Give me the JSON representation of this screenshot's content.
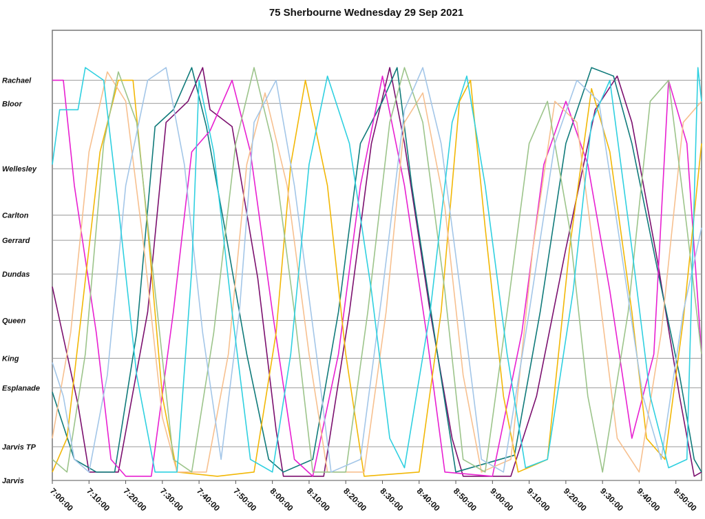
{
  "chart_data": {
    "type": "line",
    "title": "75 Sherbourne Wednesday 29 Sep 2021",
    "xlabel": "",
    "ylabel": "",
    "x_range": [
      "7:00:00",
      "9:57:00"
    ],
    "grid": true,
    "stops": [
      {
        "name": "Rachael",
        "pos": 0.95
      },
      {
        "name": "Bloor",
        "pos": 0.895
      },
      {
        "name": "Wellesley",
        "pos": 0.74
      },
      {
        "name": "Carlton",
        "pos": 0.63
      },
      {
        "name": "Gerrard",
        "pos": 0.57
      },
      {
        "name": "Dundas",
        "pos": 0.49
      },
      {
        "name": "Queen",
        "pos": 0.38
      },
      {
        "name": "King",
        "pos": 0.29
      },
      {
        "name": "Esplanade",
        "pos": 0.22
      },
      {
        "name": "Jarvis TP",
        "pos": 0.08
      },
      {
        "name": "Jarvis",
        "pos": 0.0
      }
    ],
    "x_ticks": [
      "7:00:00",
      "7:10:00",
      "7:20:00",
      "7:30:00",
      "7:40:00",
      "7:50:00",
      "8:00:00",
      "8:10:00",
      "8:20:00",
      "8:30:00",
      "8:40:00",
      "8:50:00",
      "9:00:00",
      "9:10:00",
      "9:20:00",
      "9:30:00",
      "9:40:00",
      "9:50:00"
    ],
    "series": [
      {
        "color": "#7b0f6e",
        "points": [
          [
            "7:00:00",
            0.46
          ],
          [
            "7:07:00",
            0.18
          ],
          [
            "7:10:00",
            0.02
          ],
          [
            "7:18:00",
            0.02
          ],
          [
            "7:26:00",
            0.4
          ],
          [
            "7:31:00",
            0.85
          ],
          [
            "7:37:00",
            0.9
          ],
          [
            "7:41:00",
            0.98
          ],
          [
            "7:43:00",
            0.88
          ],
          [
            "7:49:00",
            0.84
          ],
          [
            "7:56:00",
            0.48
          ],
          [
            "8:01:00",
            0.12
          ],
          [
            "8:03:00",
            0.01
          ],
          [
            "8:14:00",
            0.01
          ],
          [
            "8:21:00",
            0.4
          ],
          [
            "8:27:00",
            0.8
          ],
          [
            "8:32:00",
            0.98
          ],
          [
            "8:36:00",
            0.8
          ],
          [
            "8:43:00",
            0.4
          ],
          [
            "8:49:00",
            0.1
          ],
          [
            "8:52:00",
            0.01
          ],
          [
            "9:05:00",
            0.01
          ],
          [
            "9:12:00",
            0.2
          ],
          [
            "9:20:00",
            0.55
          ],
          [
            "9:28:00",
            0.88
          ],
          [
            "9:34:00",
            0.96
          ],
          [
            "9:38:00",
            0.85
          ],
          [
            "9:45:00",
            0.52
          ],
          [
            "9:51:00",
            0.2
          ],
          [
            "9:55:00",
            0.01
          ],
          [
            "9:57:00",
            0.02
          ]
        ]
      },
      {
        "color": "#0f7a7a",
        "points": [
          [
            "7:00:00",
            0.21
          ],
          [
            "7:06:00",
            0.05
          ],
          [
            "7:12:00",
            0.02
          ],
          [
            "7:17:00",
            0.02
          ],
          [
            "7:23:00",
            0.35
          ],
          [
            "7:28:00",
            0.84
          ],
          [
            "7:33:00",
            0.88
          ],
          [
            "7:38:00",
            0.98
          ],
          [
            "7:42:00",
            0.84
          ],
          [
            "7:47:00",
            0.6
          ],
          [
            "7:53:00",
            0.3
          ],
          [
            "7:59:00",
            0.05
          ],
          [
            "8:03:00",
            0.02
          ],
          [
            "8:11:00",
            0.05
          ],
          [
            "8:18:00",
            0.4
          ],
          [
            "8:24:00",
            0.8
          ],
          [
            "8:30:00",
            0.9
          ],
          [
            "8:34:00",
            0.98
          ],
          [
            "8:38:00",
            0.7
          ],
          [
            "8:45:00",
            0.3
          ],
          [
            "8:50:00",
            0.02
          ],
          [
            "9:06:00",
            0.06
          ],
          [
            "9:13:00",
            0.4
          ],
          [
            "9:20:00",
            0.8
          ],
          [
            "9:27:00",
            0.98
          ],
          [
            "9:33:00",
            0.96
          ],
          [
            "9:38:00",
            0.8
          ],
          [
            "9:45:00",
            0.5
          ],
          [
            "9:51:00",
            0.25
          ],
          [
            "9:55:00",
            0.05
          ],
          [
            "9:57:00",
            0.02
          ]
        ]
      },
      {
        "color": "#e81fd1",
        "points": [
          [
            "7:00:00",
            0.95
          ],
          [
            "7:03:00",
            0.95
          ],
          [
            "7:06:00",
            0.7
          ],
          [
            "7:12:00",
            0.35
          ],
          [
            "7:16:00",
            0.05
          ],
          [
            "7:20:00",
            0.01
          ],
          [
            "7:27:00",
            0.01
          ],
          [
            "7:33:00",
            0.4
          ],
          [
            "7:38:00",
            0.78
          ],
          [
            "7:43:00",
            0.83
          ],
          [
            "7:49:00",
            0.95
          ],
          [
            "7:54:00",
            0.78
          ],
          [
            "8:00:00",
            0.4
          ],
          [
            "8:06:00",
            0.05
          ],
          [
            "8:11:00",
            0.01
          ],
          [
            "8:18:00",
            0.3
          ],
          [
            "8:24:00",
            0.7
          ],
          [
            "8:30:00",
            0.96
          ],
          [
            "8:36:00",
            0.7
          ],
          [
            "8:42:00",
            0.35
          ],
          [
            "8:47:00",
            0.02
          ],
          [
            "9:00:00",
            0.01
          ],
          [
            "9:08:00",
            0.35
          ],
          [
            "9:14:00",
            0.75
          ],
          [
            "9:20:00",
            0.9
          ],
          [
            "9:26:00",
            0.75
          ],
          [
            "9:32:00",
            0.45
          ],
          [
            "9:38:00",
            0.1
          ],
          [
            "9:44:00",
            0.3
          ],
          [
            "9:48:00",
            0.95
          ],
          [
            "9:53:00",
            0.8
          ],
          [
            "9:57:00",
            0.3
          ]
        ]
      },
      {
        "color": "#f2b705",
        "points": [
          [
            "7:00:00",
            0.02
          ],
          [
            "7:04:00",
            0.1
          ],
          [
            "7:08:00",
            0.4
          ],
          [
            "7:13:00",
            0.78
          ],
          [
            "7:18:00",
            0.95
          ],
          [
            "7:22:00",
            0.95
          ],
          [
            "7:26:00",
            0.6
          ],
          [
            "7:30:00",
            0.2
          ],
          [
            "7:34:00",
            0.02
          ],
          [
            "7:45:00",
            0.01
          ],
          [
            "7:55:00",
            0.02
          ],
          [
            "8:01:00",
            0.35
          ],
          [
            "8:05:00",
            0.75
          ],
          [
            "8:09:00",
            0.95
          ],
          [
            "8:15:00",
            0.7
          ],
          [
            "8:20:00",
            0.3
          ],
          [
            "8:25:00",
            0.01
          ],
          [
            "8:40:00",
            0.02
          ],
          [
            "8:46:00",
            0.4
          ],
          [
            "8:51:00",
            0.9
          ],
          [
            "8:54:00",
            0.95
          ],
          [
            "8:58:00",
            0.6
          ],
          [
            "9:03:00",
            0.2
          ],
          [
            "9:07:00",
            0.02
          ],
          [
            "9:15:00",
            0.05
          ],
          [
            "9:21:00",
            0.55
          ],
          [
            "9:27:00",
            0.93
          ],
          [
            "9:32:00",
            0.78
          ],
          [
            "9:38:00",
            0.4
          ],
          [
            "9:42:00",
            0.1
          ],
          [
            "9:47:00",
            0.05
          ],
          [
            "9:52:00",
            0.38
          ],
          [
            "9:57:00",
            0.8
          ]
        ]
      },
      {
        "color": "#f7c08f",
        "points": [
          [
            "7:00:00",
            0.1
          ],
          [
            "7:05:00",
            0.35
          ],
          [
            "7:10:00",
            0.78
          ],
          [
            "7:15:00",
            0.97
          ],
          [
            "7:20:00",
            0.9
          ],
          [
            "7:25:00",
            0.55
          ],
          [
            "7:30:00",
            0.15
          ],
          [
            "7:34:00",
            0.02
          ],
          [
            "7:42:00",
            0.02
          ],
          [
            "7:48:00",
            0.3
          ],
          [
            "7:53:00",
            0.75
          ],
          [
            "7:58:00",
            0.92
          ],
          [
            "8:04:00",
            0.7
          ],
          [
            "8:10:00",
            0.3
          ],
          [
            "8:15:00",
            0.02
          ],
          [
            "8:25:00",
            0.02
          ],
          [
            "8:31:00",
            0.4
          ],
          [
            "8:36:00",
            0.85
          ],
          [
            "8:41:00",
            0.92
          ],
          [
            "8:47:00",
            0.65
          ],
          [
            "8:52:00",
            0.25
          ],
          [
            "8:57:00",
            0.02
          ],
          [
            "9:05:00",
            0.05
          ],
          [
            "9:11:00",
            0.55
          ],
          [
            "9:17:00",
            0.9
          ],
          [
            "9:23:00",
            0.85
          ],
          [
            "9:29:00",
            0.45
          ],
          [
            "9:34:00",
            0.1
          ],
          [
            "9:40:00",
            0.02
          ],
          [
            "9:46:00",
            0.35
          ],
          [
            "9:52:00",
            0.85
          ],
          [
            "9:57:00",
            0.9
          ]
        ]
      },
      {
        "color": "#9cc48a",
        "points": [
          [
            "7:00:00",
            0.05
          ],
          [
            "7:04:00",
            0.02
          ],
          [
            "7:09:00",
            0.3
          ],
          [
            "7:14:00",
            0.8
          ],
          [
            "7:18:00",
            0.97
          ],
          [
            "7:23:00",
            0.85
          ],
          [
            "7:28:00",
            0.45
          ],
          [
            "7:33:00",
            0.05
          ],
          [
            "7:38:00",
            0.02
          ],
          [
            "7:44:00",
            0.35
          ],
          [
            "7:50:00",
            0.8
          ],
          [
            "7:55:00",
            0.98
          ],
          [
            "8:00:00",
            0.8
          ],
          [
            "8:06:00",
            0.4
          ],
          [
            "8:11:00",
            0.02
          ],
          [
            "8:20:00",
            0.02
          ],
          [
            "8:26:00",
            0.4
          ],
          [
            "8:32:00",
            0.85
          ],
          [
            "8:36:00",
            0.98
          ],
          [
            "8:41:00",
            0.85
          ],
          [
            "8:47:00",
            0.45
          ],
          [
            "8:52:00",
            0.05
          ],
          [
            "8:58:00",
            0.02
          ],
          [
            "9:04:00",
            0.4
          ],
          [
            "9:10:00",
            0.8
          ],
          [
            "9:15:00",
            0.9
          ],
          [
            "9:21:00",
            0.6
          ],
          [
            "9:26:00",
            0.2
          ],
          [
            "9:30:00",
            0.02
          ],
          [
            "9:37:00",
            0.4
          ],
          [
            "9:43:00",
            0.9
          ],
          [
            "9:48:00",
            0.95
          ],
          [
            "9:53:00",
            0.6
          ],
          [
            "9:57:00",
            0.3
          ]
        ]
      },
      {
        "color": "#a3c6e8",
        "points": [
          [
            "7:00:00",
            0.28
          ],
          [
            "7:03:00",
            0.2
          ],
          [
            "7:06:00",
            0.05
          ],
          [
            "7:10:00",
            0.02
          ],
          [
            "7:15:00",
            0.25
          ],
          [
            "7:20:00",
            0.7
          ],
          [
            "7:26:00",
            0.95
          ],
          [
            "7:31:00",
            0.98
          ],
          [
            "7:36:00",
            0.75
          ],
          [
            "7:41:00",
            0.35
          ],
          [
            "7:46:00",
            0.05
          ],
          [
            "7:51:00",
            0.4
          ],
          [
            "7:55:00",
            0.85
          ],
          [
            "8:01:00",
            0.95
          ],
          [
            "8:06:00",
            0.7
          ],
          [
            "8:12:00",
            0.3
          ],
          [
            "8:16:00",
            0.02
          ],
          [
            "8:24:00",
            0.05
          ],
          [
            "8:30:00",
            0.45
          ],
          [
            "8:36:00",
            0.88
          ],
          [
            "8:41:00",
            0.98
          ],
          [
            "8:46:00",
            0.8
          ],
          [
            "8:52:00",
            0.4
          ],
          [
            "8:57:00",
            0.05
          ],
          [
            "9:03:00",
            0.02
          ],
          [
            "9:10:00",
            0.4
          ],
          [
            "9:17:00",
            0.8
          ],
          [
            "9:23:00",
            0.95
          ],
          [
            "9:29:00",
            0.9
          ],
          [
            "9:35:00",
            0.55
          ],
          [
            "9:41:00",
            0.2
          ],
          [
            "9:46:00",
            0.05
          ],
          [
            "9:52:00",
            0.4
          ],
          [
            "9:57:00",
            0.6
          ]
        ]
      },
      {
        "color": "#2fd0e0",
        "points": [
          [
            "7:00:00",
            0.75
          ],
          [
            "7:02:00",
            0.88
          ],
          [
            "7:07:00",
            0.88
          ],
          [
            "7:09:00",
            0.98
          ],
          [
            "7:14:00",
            0.95
          ],
          [
            "7:18:00",
            0.65
          ],
          [
            "7:23:00",
            0.25
          ],
          [
            "7:28:00",
            0.02
          ],
          [
            "7:34:00",
            0.02
          ],
          [
            "7:38:00",
            0.5
          ],
          [
            "7:40:00",
            0.95
          ],
          [
            "7:44:00",
            0.78
          ],
          [
            "7:49:00",
            0.4
          ],
          [
            "7:54:00",
            0.05
          ],
          [
            "8:00:00",
            0.02
          ],
          [
            "8:05:00",
            0.3
          ],
          [
            "8:10:00",
            0.75
          ],
          [
            "8:15:00",
            0.96
          ],
          [
            "8:21:00",
            0.8
          ],
          [
            "8:27:00",
            0.45
          ],
          [
            "8:32:00",
            0.1
          ],
          [
            "8:36:00",
            0.03
          ],
          [
            "8:43:00",
            0.4
          ],
          [
            "8:49:00",
            0.85
          ],
          [
            "8:53:00",
            0.96
          ],
          [
            "8:58:00",
            0.7
          ],
          [
            "9:04:00",
            0.3
          ],
          [
            "9:09:00",
            0.03
          ],
          [
            "9:15:00",
            0.05
          ],
          [
            "9:22:00",
            0.45
          ],
          [
            "9:27:00",
            0.85
          ],
          [
            "9:32:00",
            0.95
          ],
          [
            "9:38:00",
            0.55
          ],
          [
            "9:43:00",
            0.2
          ],
          [
            "9:48:00",
            0.03
          ],
          [
            "9:53:00",
            0.05
          ],
          [
            "9:56:00",
            0.98
          ],
          [
            "9:57:00",
            0.9
          ]
        ]
      }
    ]
  }
}
